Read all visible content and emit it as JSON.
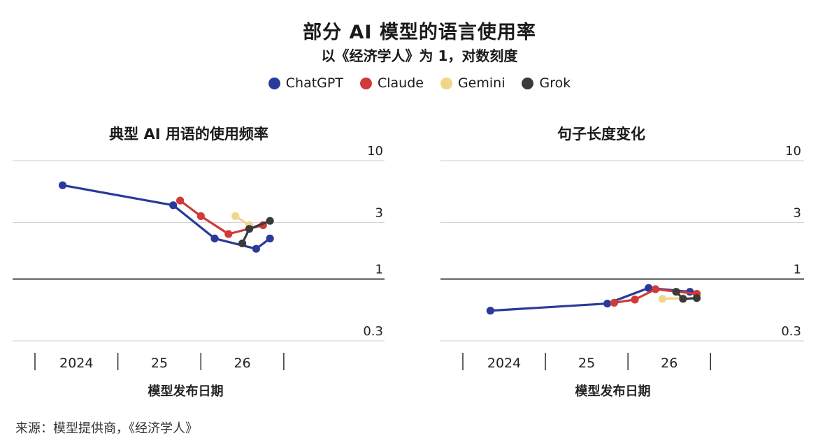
{
  "title": "部分 AI 模型的语言使用率",
  "subtitle": "以《经济学人》为 1，对数刻度",
  "legend": [
    {
      "name": "ChatGPT",
      "color": "#2a3a9a"
    },
    {
      "name": "Claude",
      "color": "#d03a38"
    },
    {
      "name": "Gemini",
      "color": "#f1d58a"
    },
    {
      "name": "Grok",
      "color": "#3a3a3a"
    }
  ],
  "source": "来源：模型提供商，《经济学人》",
  "chart_data": [
    {
      "type": "line",
      "title": "典型 AI 用语的使用频率",
      "xlabel": "模型发布日期",
      "x_ticks": [
        "2024",
        "25",
        "26"
      ],
      "y_scale": "log",
      "y_ticks": [
        "10",
        "3",
        "1",
        "0.3"
      ],
      "ylim": [
        0.3,
        10
      ],
      "xlim": [
        "2023-01",
        "2026-09"
      ],
      "series": [
        {
          "name": "ChatGPT",
          "color": "#2a3a9a",
          "points": [
            [
              "2023-05",
              6.2
            ],
            [
              "2024-09",
              4.2
            ],
            [
              "2025-03",
              2.2
            ],
            [
              "2025-09",
              1.8
            ],
            [
              "2025-11",
              2.2
            ]
          ]
        },
        {
          "name": "Claude",
          "color": "#d03a38",
          "points": [
            [
              "2024-10",
              4.6
            ],
            [
              "2025-01",
              3.4
            ],
            [
              "2025-05",
              2.4
            ],
            [
              "2025-10",
              2.85
            ]
          ]
        },
        {
          "name": "Gemini",
          "color": "#f1d58a",
          "points": [
            [
              "2025-06",
              3.4
            ],
            [
              "2025-08",
              2.85
            ]
          ]
        },
        {
          "name": "Grok",
          "color": "#3a3a3a",
          "points": [
            [
              "2025-07",
              2.0
            ],
            [
              "2025-08",
              2.65
            ],
            [
              "2025-11",
              3.1
            ]
          ]
        }
      ]
    },
    {
      "type": "line",
      "title": "句子长度变化",
      "xlabel": "模型发布日期",
      "x_ticks": [
        "2024",
        "25",
        "26"
      ],
      "y_scale": "log",
      "y_ticks": [
        "10",
        "3",
        "1",
        "0.3"
      ],
      "ylim": [
        0.3,
        10
      ],
      "xlim": [
        "2023-01",
        "2026-09"
      ],
      "series": [
        {
          "name": "ChatGPT",
          "color": "#2a3a9a",
          "points": [
            [
              "2023-05",
              0.54
            ],
            [
              "2024-10",
              0.62
            ],
            [
              "2025-04",
              0.84
            ],
            [
              "2025-10",
              0.78
            ]
          ]
        },
        {
          "name": "Claude",
          "color": "#d03a38",
          "points": [
            [
              "2024-11",
              0.63
            ],
            [
              "2025-02",
              0.67
            ],
            [
              "2025-05",
              0.82
            ],
            [
              "2025-11",
              0.75
            ]
          ]
        },
        {
          "name": "Gemini",
          "color": "#f1d58a",
          "points": [
            [
              "2025-06",
              0.68
            ],
            [
              "2025-09",
              0.69
            ]
          ]
        },
        {
          "name": "Grok",
          "color": "#3a3a3a",
          "points": [
            [
              "2025-08",
              0.78
            ],
            [
              "2025-09",
              0.68
            ],
            [
              "2025-11",
              0.69
            ]
          ]
        }
      ]
    }
  ]
}
